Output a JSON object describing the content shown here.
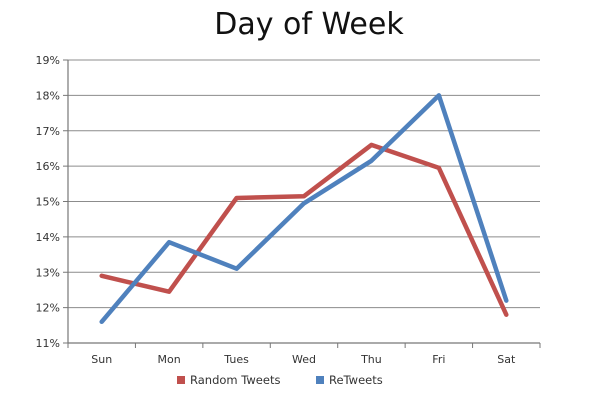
{
  "chart_data": {
    "type": "line",
    "title": "Day of Week",
    "xlabel": "",
    "ylabel": "",
    "categories": [
      "Sun",
      "Mon",
      "Tues",
      "Wed",
      "Thu",
      "Fri",
      "Sat"
    ],
    "ylim": [
      11,
      19
    ],
    "yticks": [
      11,
      12,
      13,
      14,
      15,
      16,
      17,
      18,
      19
    ],
    "ytick_suffix": "%",
    "grid": true,
    "legend_position": "bottom",
    "series": [
      {
        "name": "Random Tweets",
        "color": "#c0504d",
        "values": [
          12.9,
          12.45,
          15.1,
          15.15,
          16.6,
          15.95,
          11.8
        ]
      },
      {
        "name": "ReTweets",
        "color": "#4f81bd",
        "values": [
          11.6,
          13.85,
          13.1,
          14.95,
          16.15,
          18.0,
          12.2
        ]
      }
    ]
  }
}
